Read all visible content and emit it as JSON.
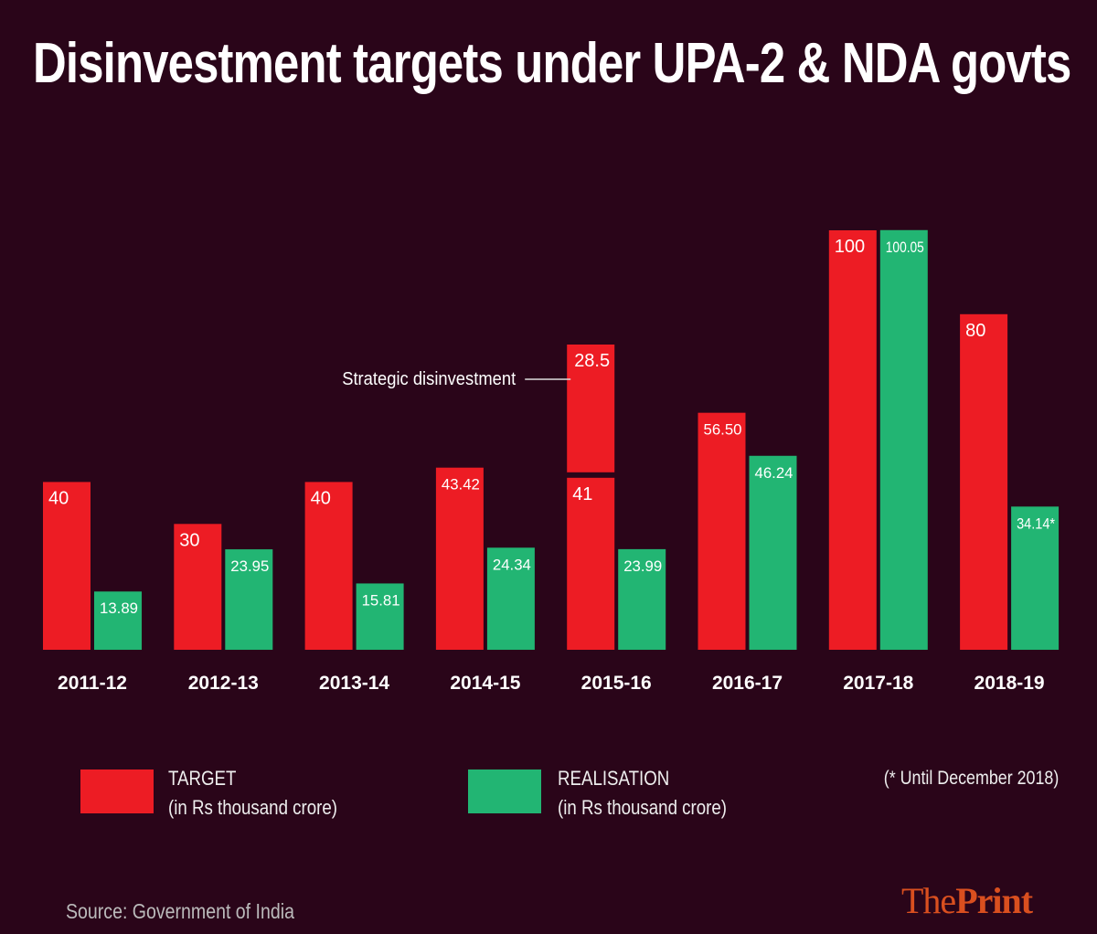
{
  "chart_data": {
    "type": "bar",
    "title": "Disinvestment targets under UPA-2 & NDA govts",
    "categories": [
      "2011-12",
      "2012-13",
      "2013-14",
      "2014-15",
      "2015-16",
      "2016-17",
      "2017-18",
      "2018-19"
    ],
    "series": [
      {
        "name": "TARGET",
        "color": "#ed1c24",
        "values": [
          40,
          30,
          40,
          43.42,
          41,
          56.5,
          100,
          80
        ],
        "labels": [
          "40",
          "30",
          "40",
          "43.42",
          "41",
          "56.50",
          "100",
          "80"
        ]
      },
      {
        "name": "REALISATION",
        "color": "#22b573",
        "values": [
          13.89,
          23.95,
          15.81,
          24.34,
          23.99,
          46.24,
          100.05,
          34.14
        ],
        "labels": [
          "13.89",
          "23.95",
          "15.81",
          "24.34",
          "23.99",
          "46.24",
          "100.05",
          "34.14*"
        ]
      }
    ],
    "stacked_extra": {
      "category": "2015-16",
      "series": "TARGET",
      "value": 28.5,
      "label": "28.5",
      "annotation": "Strategic disinvestment"
    },
    "ylim": [
      0,
      100
    ],
    "grid": false,
    "legend_position": "bottom"
  },
  "legend": {
    "target": {
      "label": "TARGET",
      "unit": "(in Rs thousand crore)",
      "color": "#ed1c24"
    },
    "realisation": {
      "label": "REALISATION",
      "unit": "(in Rs thousand crore)",
      "color": "#22b573"
    }
  },
  "note": "(* Until December 2018)",
  "source": "Source: Government of India",
  "logo": {
    "part1": "The",
    "part2": "Print",
    "color": "#d94f1f"
  },
  "background": "#2a0519"
}
